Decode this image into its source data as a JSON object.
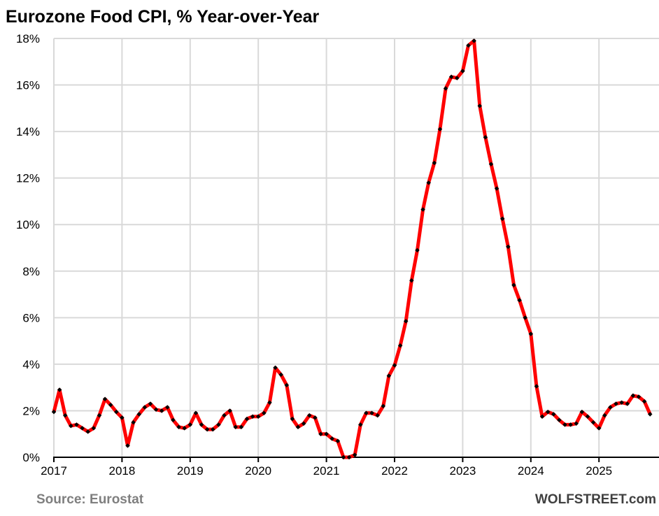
{
  "chart_data": {
    "type": "line",
    "title": "Eurozone Food CPI, % Year-over-Year",
    "xlabel": "",
    "ylabel": "",
    "ylim": [
      0,
      18
    ],
    "yticks": [
      "0%",
      "2%",
      "4%",
      "6%",
      "8%",
      "10%",
      "12%",
      "14%",
      "16%",
      "18%"
    ],
    "xticks": [
      "2017",
      "2018",
      "2019",
      "2020",
      "2021",
      "2022",
      "2023",
      "2024",
      "2025"
    ],
    "start": "2017-01",
    "frequency": "monthly",
    "grid": true,
    "line_color": "#ff0000",
    "marker_color": "#000000",
    "series": [
      {
        "name": "Food CPI YoY %",
        "values": [
          1.95,
          2.9,
          1.8,
          1.35,
          1.4,
          1.25,
          1.1,
          1.25,
          1.8,
          2.5,
          2.25,
          1.95,
          1.7,
          0.5,
          1.5,
          1.85,
          2.15,
          2.3,
          2.05,
          2.0,
          2.15,
          1.6,
          1.3,
          1.25,
          1.4,
          1.9,
          1.4,
          1.2,
          1.2,
          1.4,
          1.8,
          2.0,
          1.3,
          1.3,
          1.65,
          1.75,
          1.75,
          1.9,
          2.35,
          3.85,
          3.55,
          3.1,
          1.65,
          1.3,
          1.45,
          1.8,
          1.7,
          1.0,
          1.0,
          0.8,
          0.7,
          0.0,
          0.0,
          0.1,
          1.4,
          1.9,
          1.9,
          1.8,
          2.2,
          3.5,
          3.95,
          4.8,
          5.85,
          7.6,
          8.9,
          10.65,
          11.8,
          12.65,
          14.1,
          15.85,
          16.35,
          16.3,
          16.6,
          17.7,
          17.9,
          15.1,
          13.75,
          12.6,
          11.55,
          10.25,
          9.05,
          7.4,
          6.75,
          6.0,
          5.3,
          3.05,
          1.75,
          1.95,
          1.85,
          1.6,
          1.4,
          1.4,
          1.45,
          1.95,
          1.75,
          1.5,
          1.25,
          1.8,
          2.15,
          2.3,
          2.35,
          2.3,
          2.65,
          2.6,
          2.4,
          1.85
        ]
      }
    ]
  },
  "footer": {
    "source": "Source: Eurostat",
    "brand": "WOLFSTREET.com"
  }
}
